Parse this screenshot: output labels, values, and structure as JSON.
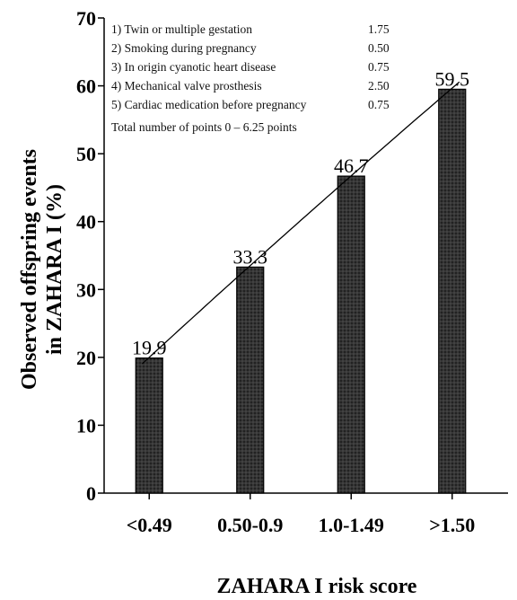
{
  "chart_data": {
    "type": "bar",
    "categories": [
      "<0.49",
      "0.50-0.9",
      "1.0-1.49",
      ">1.50"
    ],
    "values": [
      19.9,
      33.3,
      46.7,
      59.5
    ],
    "data_labels": [
      "19.9",
      "33.3",
      "46.7",
      "59.5"
    ],
    "xlabel": "ZAHARA I risk score",
    "ylabel_line1": "Observed offspring events",
    "ylabel_line2": "in  ZAHARA I  (%)",
    "ylim": [
      0,
      70
    ],
    "yticks": [
      0,
      10,
      20,
      30,
      40,
      50,
      60,
      70
    ],
    "trendline": true,
    "grid": false,
    "colors": {
      "bar": "#2a2a2a",
      "bar_pattern": "#5a5a5a",
      "axis": "#000000",
      "trend": "#000000"
    },
    "legend_position": "top-left",
    "annotations": [
      {
        "text": "1) Twin or multiple gestation",
        "points": "1.75"
      },
      {
        "text": "2) Smoking during pregnancy",
        "points": "0.50"
      },
      {
        "text": "3) In origin cyanotic heart disease",
        "points": "0.75"
      },
      {
        "text": "4) Mechanical valve prosthesis",
        "points": "2.50"
      },
      {
        "text": "5) Cardiac medication before pregnancy",
        "points": "0.75"
      }
    ],
    "annotation_total": "Total number of points 0   – 6.25 points"
  }
}
